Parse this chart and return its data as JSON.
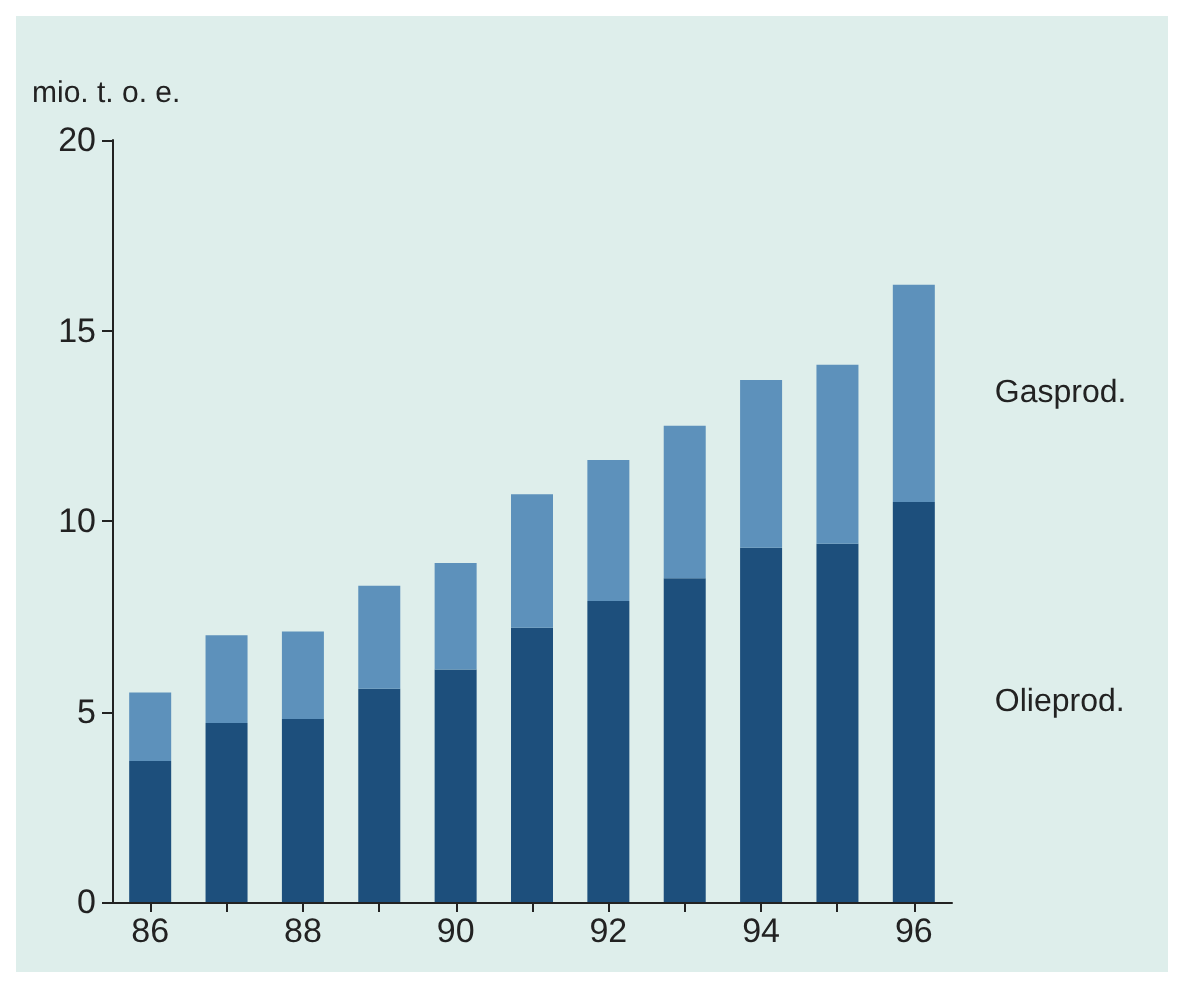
{
  "chart_data": {
    "type": "bar",
    "stacked": true,
    "ylabel": "mio. t. o. e.",
    "categories": [
      "86",
      null,
      "88",
      null,
      "90",
      null,
      "92",
      null,
      "94",
      null,
      "96"
    ],
    "series": [
      {
        "name": "Olieprod.",
        "color": "#1d4f7c",
        "values": [
          3.7,
          4.7,
          4.8,
          5.6,
          6.1,
          7.2,
          7.9,
          8.5,
          9.3,
          9.4,
          10.5
        ]
      },
      {
        "name": "Gasprod.",
        "color": "#5d91bb",
        "values": [
          1.8,
          2.3,
          2.3,
          2.7,
          2.8,
          3.5,
          3.7,
          4.0,
          4.4,
          4.7,
          5.7
        ]
      }
    ],
    "ylim": [
      0,
      20
    ],
    "yticks": [
      0,
      5,
      10,
      15,
      20
    ],
    "grid": false,
    "legend": false
  }
}
